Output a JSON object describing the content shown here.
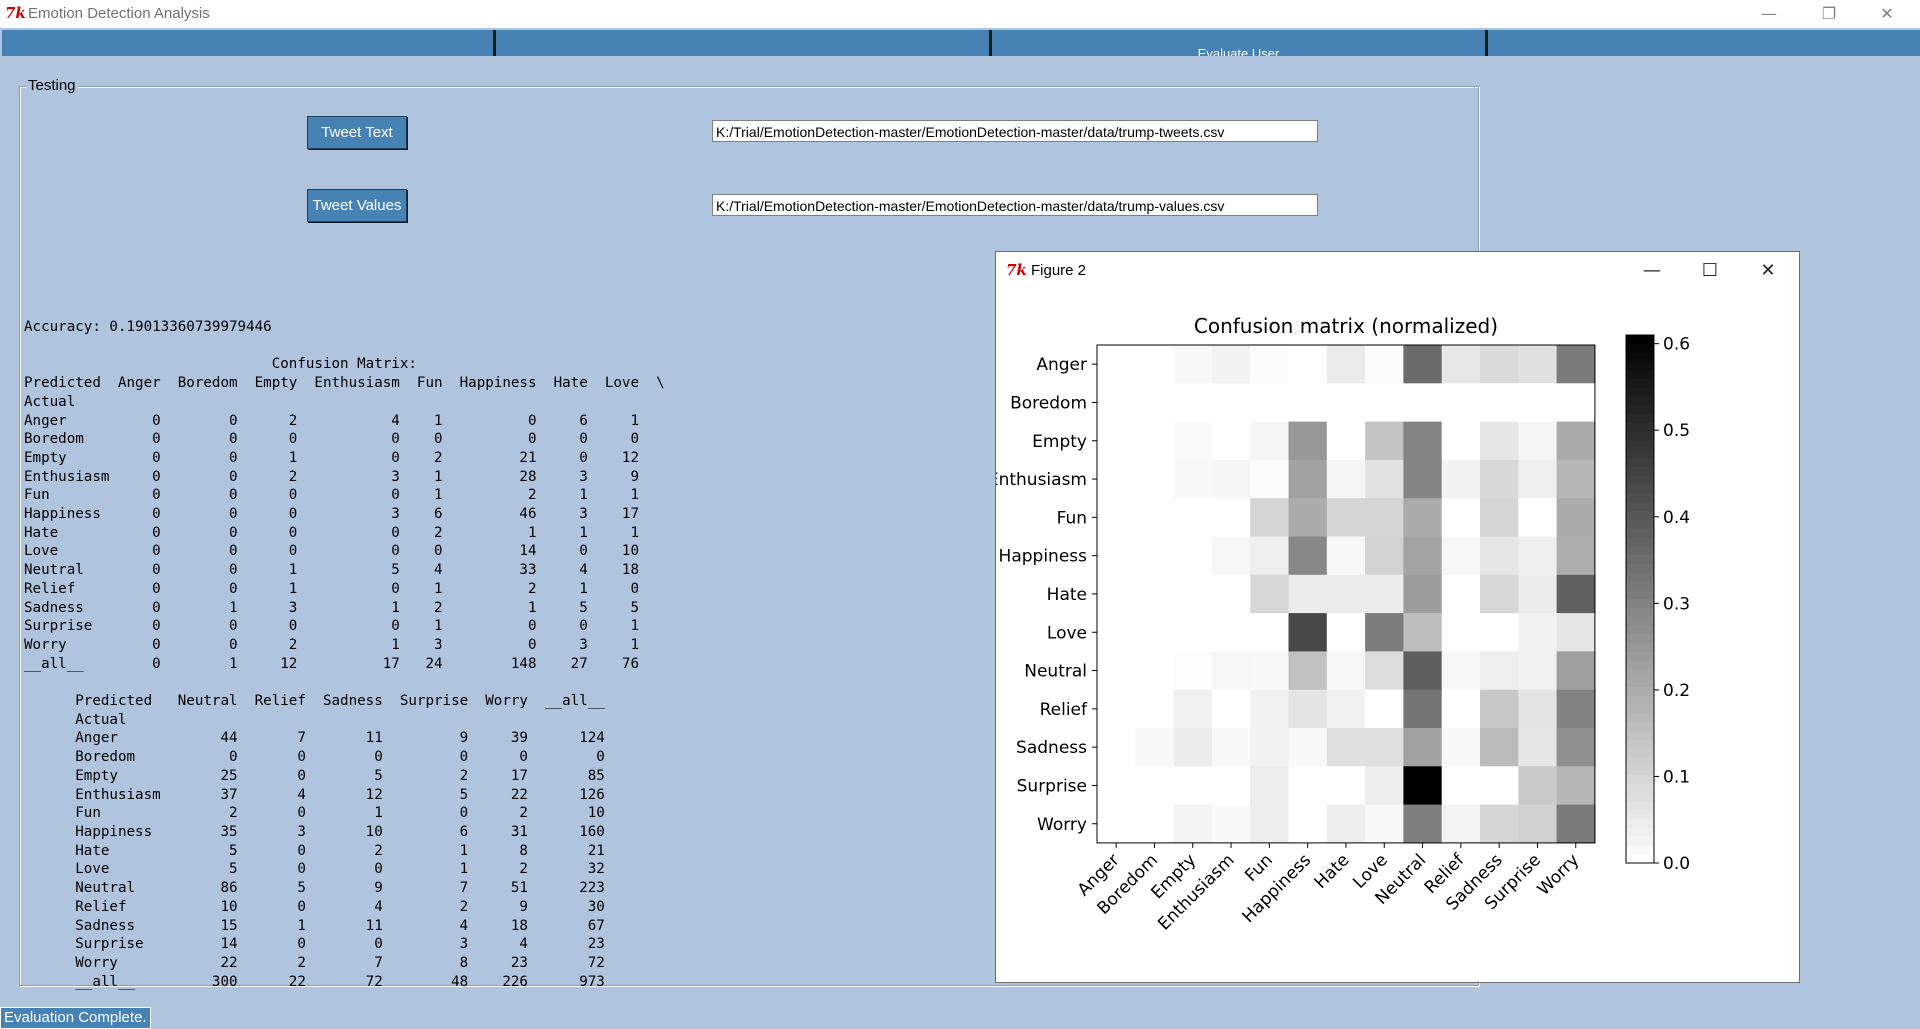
{
  "window": {
    "title": "Emotion Detection Analysis",
    "minimize": "—",
    "restore": "❐",
    "close": "✕"
  },
  "tabs": [
    {
      "label": ""
    },
    {
      "label": ""
    },
    {
      "label": "Evaluate User"
    },
    {
      "label": ""
    }
  ],
  "testing": {
    "frame_label": "Testing",
    "tweet_text_button": "Tweet Text",
    "tweet_values_button": "Tweet Values",
    "tweet_text_path": "K:/Trial/EmotionDetection-master/EmotionDetection-master/data/trump-tweets.csv",
    "tweet_values_path": "K:/Trial/EmotionDetection-master/EmotionDetection-master/data/trump-values.csv"
  },
  "output_text": "Accuracy: 0.19013360739979446\n\n                             Confusion Matrix:\nPredicted  Anger  Boredom  Empty  Enthusiasm  Fun  Happiness  Hate  Love  \\\nActual\nAnger          0        0      2           4    1          0     6     1\nBoredom        0        0      0           0    0          0     0     0\nEmpty          0        0      1           0    2         21     0    12\nEnthusiasm     0        0      2           3    1         28     3     9\nFun            0        0      0           0    1          2     1     1\nHappiness      0        0      0           3    6         46     3    17\nHate           0        0      0           0    2          1     1     1\nLove           0        0      0           0    0         14     0    10\nNeutral        0        0      1           5    4         33     4    18\nRelief         0        0      1           0    1          2     1     0\nSadness        0        1      3           1    2          1     5     5\nSurprise       0        0      0           0    1          0     0     1\nWorry          0        0      2           1    3          0     3     1\n__all__        0        1     12          17   24        148    27    76\n\n      Predicted   Neutral  Relief  Sadness  Surprise  Worry  __all__\n      Actual\n      Anger            44       7       11         9     39      124\n      Boredom           0       0        0         0      0        0\n      Empty            25       0        5         2     17       85\n      Enthusiasm       37       4       12         5     22      126\n      Fun               2       0        1         0      2       10\n      Happiness        35       3       10         6     31      160\n      Hate              5       0        2         1      8       21\n      Love              5       0        0         1      2       32\n      Neutral          86       5        9         7     51      223\n      Relief           10       0        4         2      9       30\n      Sadness          15       1       11         4     18       67\n      Surprise         14       0        0         3      4       23\n      Worry            22       2        7         8     23       72\n      __all__         300      22       72        48    226      973",
  "figure": {
    "window_title": "Figure 2",
    "minimize": "—",
    "maximize": "☐",
    "close": "✕"
  },
  "chart_data": {
    "type": "heatmap",
    "title": "Confusion matrix (normalized)",
    "xlabel": "",
    "ylabel": "",
    "cmap": "Greys",
    "y_labels": [
      "Anger",
      "Boredom",
      "Empty",
      "Enthusiasm",
      "Fun",
      "Happiness",
      "Hate",
      "Love",
      "Neutral",
      "Relief",
      "Sadness",
      "Surprise",
      "Worry"
    ],
    "x_labels": [
      "Anger",
      "Boredom",
      "Empty",
      "Enthusiasm",
      "Fun",
      "Happiness",
      "Hate",
      "Love",
      "Neutral",
      "Relief",
      "Sadness",
      "Surprise",
      "Worry"
    ],
    "colorbar": {
      "min": 0.0,
      "max": 0.61,
      "ticks": [
        "0.0",
        "0.1",
        "0.2",
        "0.3",
        "0.4",
        "0.5",
        "0.6"
      ]
    },
    "values": [
      [
        0.0,
        0.0,
        0.016,
        0.032,
        0.008,
        0.0,
        0.048,
        0.008,
        0.355,
        0.056,
        0.089,
        0.073,
        0.315
      ],
      [
        0.0,
        0.0,
        0.0,
        0.0,
        0.0,
        0.0,
        0.0,
        0.0,
        0.0,
        0.0,
        0.0,
        0.0,
        0.0
      ],
      [
        0.0,
        0.0,
        0.012,
        0.0,
        0.024,
        0.247,
        0.0,
        0.141,
        0.294,
        0.0,
        0.059,
        0.024,
        0.2
      ],
      [
        0.0,
        0.0,
        0.016,
        0.024,
        0.008,
        0.222,
        0.024,
        0.071,
        0.294,
        0.032,
        0.095,
        0.04,
        0.175
      ],
      [
        0.0,
        0.0,
        0.0,
        0.0,
        0.1,
        0.2,
        0.1,
        0.1,
        0.2,
        0.0,
        0.1,
        0.0,
        0.2
      ],
      [
        0.0,
        0.0,
        0.0,
        0.019,
        0.038,
        0.288,
        0.019,
        0.106,
        0.219,
        0.019,
        0.063,
        0.038,
        0.194
      ],
      [
        0.0,
        0.0,
        0.0,
        0.0,
        0.095,
        0.048,
        0.048,
        0.048,
        0.238,
        0.0,
        0.095,
        0.048,
        0.381
      ],
      [
        0.0,
        0.0,
        0.0,
        0.0,
        0.0,
        0.438,
        0.0,
        0.313,
        0.156,
        0.0,
        0.0,
        0.031,
        0.063
      ],
      [
        0.0,
        0.0,
        0.004,
        0.022,
        0.018,
        0.148,
        0.018,
        0.081,
        0.386,
        0.022,
        0.04,
        0.031,
        0.229
      ],
      [
        0.0,
        0.0,
        0.033,
        0.0,
        0.033,
        0.067,
        0.033,
        0.0,
        0.333,
        0.0,
        0.133,
        0.067,
        0.3
      ],
      [
        0.0,
        0.015,
        0.045,
        0.015,
        0.03,
        0.015,
        0.075,
        0.075,
        0.224,
        0.015,
        0.164,
        0.06,
        0.269
      ],
      [
        0.0,
        0.0,
        0.0,
        0.0,
        0.043,
        0.0,
        0.0,
        0.043,
        0.609,
        0.0,
        0.0,
        0.13,
        0.174
      ],
      [
        0.0,
        0.0,
        0.028,
        0.014,
        0.042,
        0.0,
        0.042,
        0.014,
        0.306,
        0.028,
        0.097,
        0.111,
        0.319
      ]
    ]
  },
  "status": {
    "text": "Evaluation Complete."
  },
  "colors": {
    "background": "#b0c4de",
    "accent": "#4682b4"
  }
}
